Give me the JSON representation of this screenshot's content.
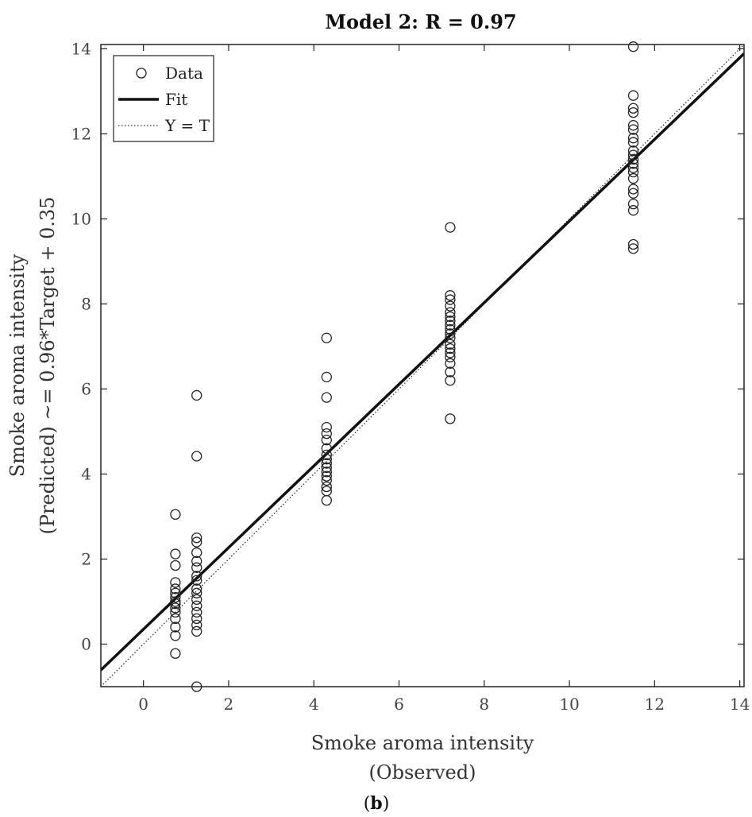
{
  "chart_data": {
    "type": "scatter",
    "title": "Model 2: R = 0.97",
    "xlabel": [
      "Smoke aroma intensity",
      "(Observed)"
    ],
    "ylabel": [
      "Smoke aroma intensity",
      "(Predicted) ~= 0.96*Target + 0.35"
    ],
    "panel_label": "b",
    "xlim": [
      -1,
      14.1
    ],
    "ylim": [
      -1,
      14.1
    ],
    "xticks": [
      0,
      2,
      4,
      6,
      8,
      10,
      12,
      14
    ],
    "yticks": [
      0,
      2,
      4,
      6,
      8,
      10,
      12,
      14
    ],
    "grid": false,
    "legend": {
      "position": "top-left",
      "entries": [
        {
          "label": "Data",
          "style": "circle"
        },
        {
          "label": "Fit",
          "style": "thick-line"
        },
        {
          "label": "Y = T",
          "style": "dotted-line"
        }
      ]
    },
    "series": [
      {
        "name": "Data",
        "points": [
          [
            0.75,
            3.05
          ],
          [
            0.75,
            2.12
          ],
          [
            0.75,
            1.85
          ],
          [
            0.75,
            1.45
          ],
          [
            0.75,
            1.3
          ],
          [
            0.75,
            1.2
          ],
          [
            0.75,
            1.1
          ],
          [
            0.75,
            1.0
          ],
          [
            0.75,
            0.95
          ],
          [
            0.75,
            0.85
          ],
          [
            0.75,
            0.75
          ],
          [
            0.75,
            0.6
          ],
          [
            0.75,
            0.4
          ],
          [
            0.75,
            0.2
          ],
          [
            0.75,
            -0.22
          ],
          [
            1.25,
            5.85
          ],
          [
            1.25,
            4.42
          ],
          [
            1.25,
            2.5
          ],
          [
            1.25,
            2.4
          ],
          [
            1.25,
            2.15
          ],
          [
            1.25,
            1.95
          ],
          [
            1.25,
            1.8
          ],
          [
            1.25,
            1.6
          ],
          [
            1.25,
            1.5
          ],
          [
            1.25,
            1.3
          ],
          [
            1.25,
            1.2
          ],
          [
            1.25,
            1.05
          ],
          [
            1.25,
            0.9
          ],
          [
            1.25,
            0.75
          ],
          [
            1.25,
            0.6
          ],
          [
            1.25,
            0.45
          ],
          [
            1.25,
            0.3
          ],
          [
            1.25,
            -1.0
          ],
          [
            4.3,
            7.2
          ],
          [
            4.3,
            6.28
          ],
          [
            4.3,
            5.8
          ],
          [
            4.3,
            5.1
          ],
          [
            4.3,
            4.95
          ],
          [
            4.3,
            4.8
          ],
          [
            4.3,
            4.6
          ],
          [
            4.3,
            4.45
          ],
          [
            4.3,
            4.35
          ],
          [
            4.3,
            4.25
          ],
          [
            4.3,
            4.15
          ],
          [
            4.3,
            4.05
          ],
          [
            4.3,
            3.95
          ],
          [
            4.3,
            3.85
          ],
          [
            4.3,
            3.7
          ],
          [
            4.3,
            3.6
          ],
          [
            4.3,
            3.38
          ],
          [
            7.2,
            9.8
          ],
          [
            7.2,
            8.2
          ],
          [
            7.2,
            8.1
          ],
          [
            7.2,
            7.95
          ],
          [
            7.2,
            7.8
          ],
          [
            7.2,
            7.7
          ],
          [
            7.2,
            7.6
          ],
          [
            7.2,
            7.5
          ],
          [
            7.2,
            7.4
          ],
          [
            7.2,
            7.3
          ],
          [
            7.2,
            7.2
          ],
          [
            7.2,
            7.05
          ],
          [
            7.2,
            6.95
          ],
          [
            7.2,
            6.85
          ],
          [
            7.2,
            6.75
          ],
          [
            7.2,
            6.6
          ],
          [
            7.2,
            6.4
          ],
          [
            7.2,
            6.2
          ],
          [
            7.2,
            5.3
          ],
          [
            11.5,
            14.05
          ],
          [
            11.5,
            12.9
          ],
          [
            11.5,
            12.6
          ],
          [
            11.5,
            12.5
          ],
          [
            11.5,
            12.2
          ],
          [
            11.5,
            12.1
          ],
          [
            11.5,
            11.9
          ],
          [
            11.5,
            11.8
          ],
          [
            11.5,
            11.6
          ],
          [
            11.5,
            11.5
          ],
          [
            11.5,
            11.4
          ],
          [
            11.5,
            11.3
          ],
          [
            11.5,
            11.2
          ],
          [
            11.5,
            11.1
          ],
          [
            11.5,
            10.95
          ],
          [
            11.5,
            10.7
          ],
          [
            11.5,
            10.6
          ],
          [
            11.5,
            10.35
          ],
          [
            11.5,
            10.2
          ],
          [
            11.5,
            9.4
          ],
          [
            11.5,
            9.3
          ]
        ]
      },
      {
        "name": "Fit",
        "line": {
          "slope": 0.96,
          "intercept": 0.35
        }
      },
      {
        "name": "Y = T",
        "line": {
          "slope": 1,
          "intercept": 0
        }
      }
    ]
  }
}
